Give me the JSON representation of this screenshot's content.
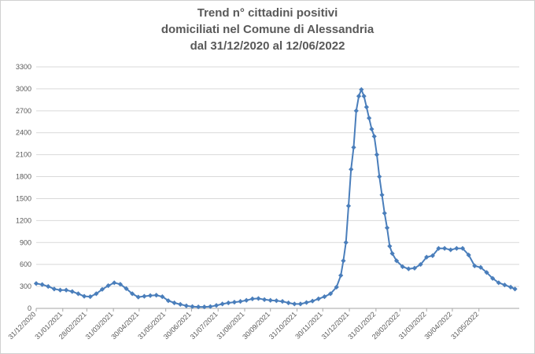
{
  "chart_data": {
    "type": "line",
    "title_lines": [
      "Trend n° cittadini positivi",
      "domiciliati nel Comune di Alessandria",
      "dal 31/12/2020 al 12/06/2022"
    ],
    "xlabel": "",
    "ylabel": "",
    "ylim": [
      0,
      3300
    ],
    "yticks": [
      0,
      300,
      600,
      900,
      1200,
      1500,
      1800,
      2100,
      2400,
      2700,
      3000,
      3300
    ],
    "xtick_labels": [
      "31/12/2020",
      "31/01/2021",
      "28/02/2021",
      "31/03/2021",
      "30/04/2021",
      "31/05/2021",
      "30/06/2021",
      "31/07/2021",
      "31/08/2021",
      "30/09/2021",
      "31/10/2021",
      "30/11/2021",
      "31/12/2021",
      "31/01/2022",
      "28/02/2022",
      "31/03/2022",
      "30/04/2022",
      "31/05/2022"
    ],
    "x_start": "31/12/2020",
    "x_end": "12/06/2022",
    "grid": "horizontal",
    "legend": "none",
    "color": "#4a7ebb",
    "series": [
      {
        "values": [
          [
            0,
            340
          ],
          [
            7,
            325
          ],
          [
            14,
            300
          ],
          [
            21,
            265
          ],
          [
            28,
            250
          ],
          [
            35,
            250
          ],
          [
            42,
            230
          ],
          [
            49,
            200
          ],
          [
            56,
            165
          ],
          [
            63,
            160
          ],
          [
            70,
            200
          ],
          [
            77,
            260
          ],
          [
            84,
            310
          ],
          [
            91,
            350
          ],
          [
            98,
            330
          ],
          [
            105,
            270
          ],
          [
            112,
            200
          ],
          [
            119,
            155
          ],
          [
            126,
            165
          ],
          [
            133,
            175
          ],
          [
            140,
            180
          ],
          [
            147,
            160
          ],
          [
            154,
            105
          ],
          [
            161,
            75
          ],
          [
            168,
            55
          ],
          [
            175,
            35
          ],
          [
            182,
            25
          ],
          [
            189,
            20
          ],
          [
            196,
            20
          ],
          [
            203,
            25
          ],
          [
            210,
            40
          ],
          [
            217,
            60
          ],
          [
            224,
            75
          ],
          [
            231,
            85
          ],
          [
            238,
            95
          ],
          [
            245,
            110
          ],
          [
            252,
            130
          ],
          [
            259,
            135
          ],
          [
            266,
            120
          ],
          [
            273,
            110
          ],
          [
            280,
            105
          ],
          [
            287,
            95
          ],
          [
            294,
            75
          ],
          [
            301,
            60
          ],
          [
            308,
            60
          ],
          [
            315,
            80
          ],
          [
            322,
            100
          ],
          [
            329,
            130
          ],
          [
            336,
            160
          ],
          [
            343,
            200
          ],
          [
            350,
            290
          ],
          [
            355,
            450
          ],
          [
            358,
            650
          ],
          [
            361,
            900
          ],
          [
            364,
            1400
          ],
          [
            367,
            1900
          ],
          [
            370,
            2200
          ],
          [
            373,
            2700
          ],
          [
            376,
            2900
          ],
          [
            379,
            2990
          ],
          [
            382,
            2900
          ],
          [
            385,
            2750
          ],
          [
            388,
            2600
          ],
          [
            391,
            2450
          ],
          [
            394,
            2350
          ],
          [
            397,
            2100
          ],
          [
            400,
            1800
          ],
          [
            403,
            1550
          ],
          [
            406,
            1300
          ],
          [
            409,
            1100
          ],
          [
            412,
            850
          ],
          [
            415,
            750
          ],
          [
            420,
            650
          ],
          [
            427,
            570
          ],
          [
            434,
            540
          ],
          [
            441,
            550
          ],
          [
            448,
            600
          ],
          [
            455,
            700
          ],
          [
            462,
            720
          ],
          [
            469,
            820
          ],
          [
            476,
            820
          ],
          [
            483,
            800
          ],
          [
            490,
            820
          ],
          [
            497,
            820
          ],
          [
            504,
            730
          ],
          [
            511,
            580
          ],
          [
            518,
            560
          ],
          [
            525,
            490
          ],
          [
            532,
            410
          ],
          [
            539,
            350
          ],
          [
            546,
            320
          ],
          [
            553,
            290
          ],
          [
            558,
            265
          ]
        ]
      }
    ]
  }
}
